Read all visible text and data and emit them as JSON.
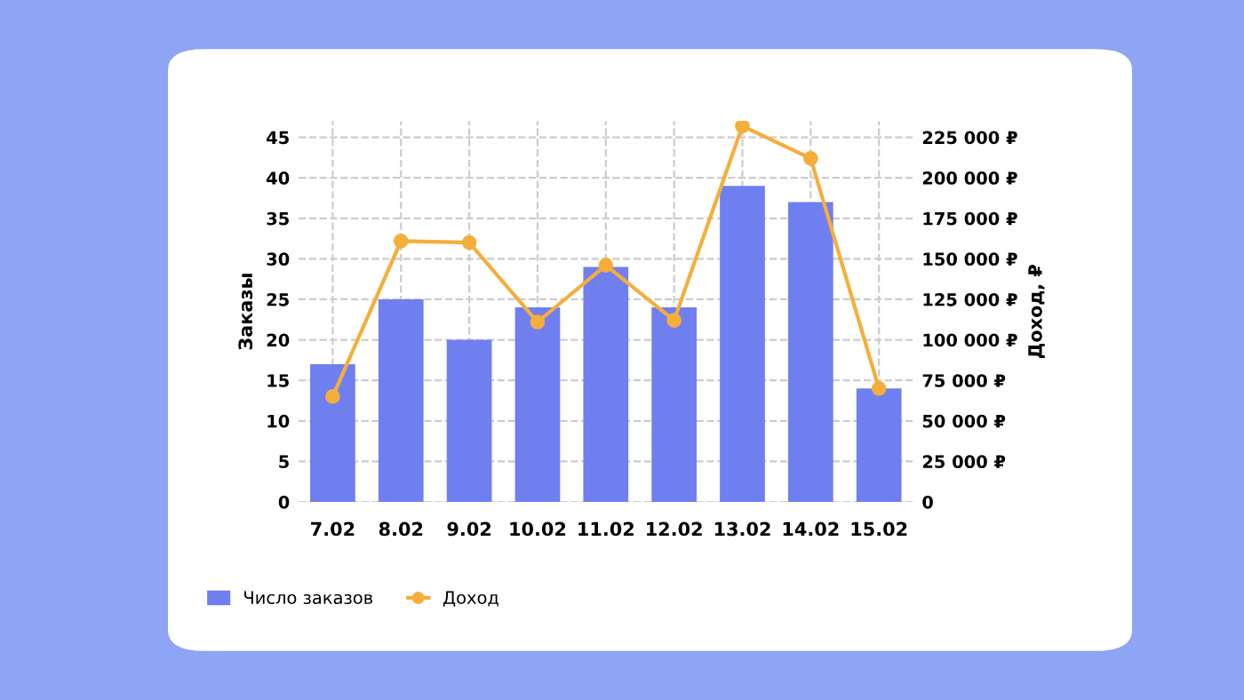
{
  "chart_data": {
    "type": "bar",
    "categories": [
      "7.02",
      "8.02",
      "9.02",
      "10.02",
      "11.02",
      "12.02",
      "13.02",
      "14.02",
      "15.02"
    ],
    "series": [
      {
        "name": "Число заказов",
        "color": "#6f7ff0",
        "values": [
          17,
          25,
          20,
          24,
          29,
          24,
          39,
          37,
          14
        ]
      },
      {
        "name": "Доход",
        "type": "line",
        "axis": "y2",
        "color": "#f5ae3a",
        "marker": "circle",
        "values": [
          65000,
          161000,
          160000,
          111000,
          146000,
          112000,
          232000,
          212000,
          70000
        ]
      }
    ],
    "ylabel": "Заказы",
    "y2label": "Доход, ₽",
    "ylim": [
      0,
      47
    ],
    "yticks": [
      0,
      5,
      10,
      15,
      20,
      25,
      30,
      35,
      40,
      45
    ],
    "y2lim": [
      0,
      235000
    ],
    "y2ticks": [
      {
        "value": 0,
        "label": "0"
      },
      {
        "value": 25000,
        "label": "25 000 ₽"
      },
      {
        "value": 50000,
        "label": "50 000 ₽"
      },
      {
        "value": 75000,
        "label": "75 000 ₽"
      },
      {
        "value": 100000,
        "label": "100 000 ₽"
      },
      {
        "value": 125000,
        "label": "125 000 ₽"
      },
      {
        "value": 150000,
        "label": "150 000 ₽"
      },
      {
        "value": 175000,
        "label": "175 000 ₽"
      },
      {
        "value": 200000,
        "label": "200 000 ₽"
      },
      {
        "value": 225000,
        "label": "225 000 ₽"
      }
    ],
    "grid": true,
    "legend": "bottom left"
  }
}
